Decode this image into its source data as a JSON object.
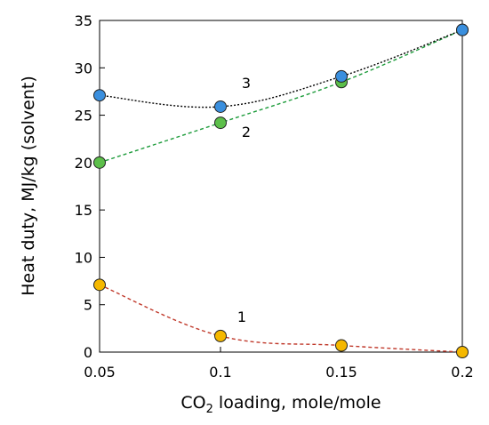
{
  "chart_data": {
    "type": "line",
    "xlabel_main": "CO",
    "xlabel_sub": "2",
    "xlabel_rest": " loading, mole/mole",
    "ylabel": "Heat duty, MJ/kg (solvent)",
    "xlim": [
      0.05,
      0.2
    ],
    "ylim": [
      0,
      35
    ],
    "xticks": [
      "0.05",
      "0.1",
      "0.15",
      "0.2"
    ],
    "yticks": [
      "0",
      "5",
      "10",
      "15",
      "20",
      "25",
      "30",
      "35"
    ],
    "grid": false,
    "legend": "none",
    "series": [
      {
        "label": "1",
        "x": [
          0.05,
          0.1,
          0.15,
          0.2
        ],
        "y": [
          7.1,
          1.7,
          0.7,
          0.0
        ],
        "line_color": "#c0392b",
        "marker_color": "#f5b800",
        "line_style": "dashed"
      },
      {
        "label": "2",
        "x": [
          0.05,
          0.1,
          0.15,
          0.2
        ],
        "y": [
          20.0,
          24.2,
          28.5,
          34.0
        ],
        "line_color": "#1e9c3c",
        "marker_color": "#5cbf4a",
        "line_style": "dashed"
      },
      {
        "label": "3",
        "x": [
          0.05,
          0.1,
          0.15,
          0.2
        ],
        "y": [
          27.1,
          25.9,
          29.1,
          34.0
        ],
        "line_color": "#000000",
        "marker_color": "#3a8fde",
        "line_style": "dotted"
      }
    ]
  }
}
